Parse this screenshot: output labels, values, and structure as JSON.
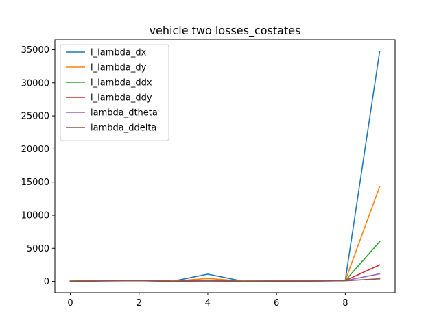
{
  "chart_data": {
    "type": "line",
    "title": "vehicle two losses_costates",
    "xlabel": "",
    "ylabel": "",
    "x": [
      0,
      1,
      2,
      3,
      4,
      5,
      6,
      7,
      8,
      9
    ],
    "xlim": [
      -0.45,
      9.45
    ],
    "ylim": [
      -1700,
      36500
    ],
    "xticks": [
      0,
      2,
      4,
      6,
      8
    ],
    "yticks": [
      0,
      5000,
      10000,
      15000,
      20000,
      25000,
      30000,
      35000
    ],
    "grid": false,
    "legend_position": "upper-left",
    "series": [
      {
        "name": "l_lambda_dx",
        "color": "#1f77b4",
        "values": [
          60,
          120,
          150,
          60,
          1100,
          60,
          80,
          90,
          150,
          34700
        ]
      },
      {
        "name": "l_lambda_dy",
        "color": "#ff7f0e",
        "values": [
          50,
          110,
          140,
          50,
          450,
          50,
          70,
          80,
          140,
          14300
        ]
      },
      {
        "name": "l_lambda_ddx",
        "color": "#2ca02c",
        "values": [
          40,
          100,
          130,
          40,
          200,
          40,
          60,
          70,
          130,
          6000
        ]
      },
      {
        "name": "l_lambda_ddy",
        "color": "#d62728",
        "values": [
          30,
          90,
          120,
          30,
          150,
          30,
          50,
          60,
          120,
          2500
        ]
      },
      {
        "name": "lambda_dtheta",
        "color": "#9467bd",
        "values": [
          20,
          80,
          110,
          20,
          80,
          20,
          40,
          50,
          110,
          1150
        ]
      },
      {
        "name": "lambda_ddelta",
        "color": "#8c564b",
        "values": [
          10,
          70,
          100,
          10,
          60,
          10,
          30,
          40,
          100,
          400
        ]
      }
    ]
  }
}
